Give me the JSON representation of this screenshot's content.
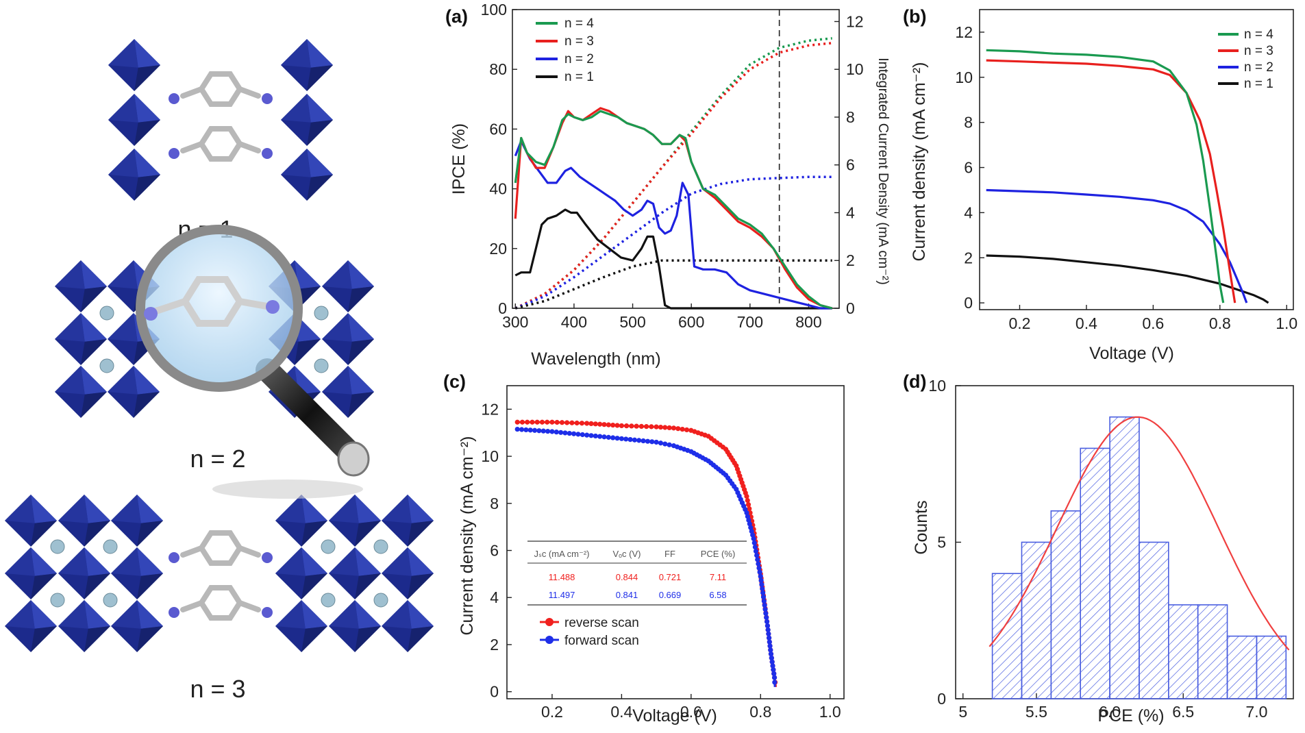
{
  "colors": {
    "n4": "#1a9a50",
    "n3": "#e8201e",
    "n2": "#1e22e0",
    "n1": "#111111",
    "octahedron": "#1c2a8c",
    "reverse": "#f0201e",
    "forward": "#1e2ee8",
    "hist": "#4a5ee0",
    "fit": "#f04040"
  },
  "structure": {
    "labels": [
      "n = 1",
      "n = 2",
      "n = 3"
    ]
  },
  "chart_data": [
    {
      "panel": "(a)",
      "type": "line",
      "xlabel": "Wavelength (nm)",
      "ylabel": "IPCE (%)",
      "y2label": "Integrated Current Density (mA cm⁻²)",
      "xlim": [
        295,
        852
      ],
      "ylim": [
        0,
        100
      ],
      "y2lim": [
        0,
        12.5
      ],
      "xticks": [
        "300",
        "400",
        "500",
        "600",
        "700",
        "800"
      ],
      "yticks": [
        "0",
        "20",
        "40",
        "60",
        "80",
        "100"
      ],
      "y2ticks": [
        "0",
        "2",
        "4",
        "6",
        "8",
        "10",
        "12"
      ],
      "vline": 750,
      "legend": [
        "n = 4",
        "n = 3",
        "n = 2",
        "n = 1"
      ],
      "legend_position": "top-left",
      "series": [
        {
          "name": "n = 4",
          "color_key": "n4",
          "x": [
            300,
            310,
            320,
            335,
            350,
            365,
            380,
            390,
            400,
            415,
            430,
            445,
            460,
            475,
            490,
            505,
            520,
            535,
            550,
            565,
            580,
            590,
            600,
            620,
            640,
            660,
            680,
            700,
            720,
            740,
            760,
            780,
            800,
            820,
            840
          ],
          "values": [
            42,
            57,
            52,
            49,
            48,
            54,
            63,
            65,
            64,
            63,
            64,
            66,
            65,
            64,
            62,
            61,
            60,
            58,
            55,
            55,
            58,
            57,
            49,
            40,
            38,
            34,
            30,
            28,
            25,
            20,
            14,
            8,
            4,
            1,
            0
          ]
        },
        {
          "name": "n = 3",
          "color_key": "n3",
          "x": [
            300,
            310,
            320,
            335,
            350,
            365,
            380,
            390,
            400,
            415,
            430,
            445,
            460,
            475,
            490,
            505,
            520,
            535,
            550,
            565,
            580,
            590,
            600,
            620,
            640,
            660,
            680,
            700,
            720,
            740,
            760,
            780,
            800,
            820,
            840
          ],
          "values": [
            30,
            57,
            52,
            47,
            47,
            54,
            62,
            66,
            64,
            63,
            65,
            67,
            66,
            64,
            62,
            61,
            60,
            58,
            55,
            55,
            58,
            56,
            49,
            40,
            37,
            33,
            29,
            27,
            24,
            20,
            13,
            7,
            3,
            1,
            0
          ]
        },
        {
          "name": "n = 2",
          "color_key": "n2",
          "x": [
            300,
            310,
            325,
            340,
            355,
            370,
            385,
            395,
            410,
            425,
            440,
            455,
            470,
            485,
            500,
            515,
            525,
            535,
            545,
            555,
            565,
            575,
            585,
            595,
            605,
            620,
            640,
            660,
            680,
            700,
            720,
            740,
            760,
            780,
            800,
            820,
            840
          ],
          "values": [
            51,
            56,
            50,
            46,
            42,
            42,
            46,
            47,
            44,
            42,
            40,
            38,
            36,
            33,
            31,
            33,
            36,
            35,
            27,
            25,
            26,
            31,
            42,
            38,
            14,
            13,
            13,
            12,
            8,
            6,
            5,
            4,
            3,
            2,
            1,
            0,
            0
          ]
        },
        {
          "name": "n = 1",
          "color_key": "n1",
          "x": [
            300,
            310,
            325,
            335,
            345,
            355,
            370,
            385,
            395,
            405,
            420,
            440,
            460,
            480,
            500,
            515,
            525,
            535,
            545,
            555,
            565,
            600,
            700,
            800,
            840
          ],
          "values": [
            11,
            12,
            12,
            20,
            28,
            30,
            31,
            33,
            32,
            32,
            28,
            23,
            20,
            17,
            16,
            20,
            24,
            24,
            14,
            1,
            0,
            0,
            0,
            0,
            0
          ]
        }
      ],
      "integrated": [
        {
          "name": "n = 4",
          "color_key": "n4",
          "x": [
            300,
            350,
            400,
            450,
            500,
            550,
            600,
            650,
            700,
            750,
            800,
            840
          ],
          "values": [
            0,
            0.6,
            1.6,
            2.9,
            4.4,
            5.9,
            7.4,
            8.9,
            10.2,
            10.9,
            11.2,
            11.3
          ]
        },
        {
          "name": "n = 3",
          "color_key": "n3",
          "x": [
            300,
            350,
            400,
            450,
            500,
            550,
            600,
            650,
            700,
            750,
            800,
            840
          ],
          "values": [
            0,
            0.6,
            1.6,
            2.9,
            4.4,
            5.9,
            7.3,
            8.8,
            10.0,
            10.7,
            11.0,
            11.1
          ]
        },
        {
          "name": "n = 2",
          "color_key": "n2",
          "x": [
            300,
            350,
            400,
            450,
            500,
            550,
            600,
            650,
            700,
            750,
            800,
            840
          ],
          "values": [
            0,
            0.5,
            1.3,
            2.2,
            3.1,
            4.0,
            4.8,
            5.2,
            5.4,
            5.45,
            5.5,
            5.5
          ]
        },
        {
          "name": "n = 1",
          "color_key": "n1",
          "x": [
            300,
            350,
            400,
            450,
            500,
            550,
            600,
            700,
            800,
            840
          ],
          "values": [
            0,
            0.3,
            0.8,
            1.3,
            1.75,
            2.0,
            2.0,
            2.0,
            2.0,
            2.0
          ]
        }
      ]
    },
    {
      "panel": "(b)",
      "type": "line",
      "xlabel": "Voltage (V)",
      "ylabel": "Current density (mA cm⁻²)",
      "xlim": [
        0.08,
        1.02
      ],
      "ylim": [
        -0.3,
        13
      ],
      "xticks": [
        "0.2",
        "0.4",
        "0.6",
        "0.8",
        "1.0"
      ],
      "yticks": [
        "0",
        "2",
        "4",
        "6",
        "8",
        "10",
        "12"
      ],
      "legend": [
        "n = 4",
        "n = 3",
        "n = 2",
        "n = 1"
      ],
      "legend_position": "top-right",
      "series": [
        {
          "name": "n = 4",
          "color_key": "n4",
          "x": [
            0.1,
            0.2,
            0.3,
            0.4,
            0.5,
            0.6,
            0.65,
            0.7,
            0.73,
            0.75,
            0.77,
            0.79,
            0.8,
            0.81
          ],
          "values": [
            11.2,
            11.15,
            11.05,
            11.0,
            10.9,
            10.7,
            10.3,
            9.3,
            7.9,
            6.3,
            4.2,
            2.0,
            0.8,
            0
          ]
        },
        {
          "name": "n = 3",
          "color_key": "n3",
          "x": [
            0.1,
            0.2,
            0.3,
            0.4,
            0.5,
            0.6,
            0.65,
            0.7,
            0.74,
            0.77,
            0.79,
            0.81,
            0.83,
            0.845
          ],
          "values": [
            10.75,
            10.7,
            10.65,
            10.6,
            10.5,
            10.35,
            10.1,
            9.3,
            8.1,
            6.6,
            5.0,
            3.3,
            1.4,
            0
          ]
        },
        {
          "name": "n = 2",
          "color_key": "n2",
          "x": [
            0.1,
            0.2,
            0.3,
            0.4,
            0.5,
            0.6,
            0.65,
            0.7,
            0.75,
            0.8,
            0.83,
            0.85,
            0.87,
            0.88
          ],
          "values": [
            5.0,
            4.95,
            4.9,
            4.8,
            4.7,
            4.55,
            4.4,
            4.1,
            3.6,
            2.6,
            1.8,
            1.1,
            0.4,
            0
          ]
        },
        {
          "name": "n = 1",
          "color_key": "n1",
          "x": [
            0.1,
            0.2,
            0.3,
            0.4,
            0.5,
            0.6,
            0.7,
            0.8,
            0.85,
            0.9,
            0.93,
            0.945
          ],
          "values": [
            2.1,
            2.05,
            1.95,
            1.8,
            1.65,
            1.45,
            1.2,
            0.85,
            0.6,
            0.35,
            0.15,
            0
          ]
        }
      ]
    },
    {
      "panel": "(c)",
      "type": "line",
      "xlabel": "Voltage (V)",
      "ylabel": "Current density (mA cm⁻²)",
      "xlim": [
        0.07,
        1.04
      ],
      "ylim": [
        -0.3,
        13
      ],
      "xticks": [
        "0.2",
        "0.4",
        "0.6",
        "0.8",
        "1.0"
      ],
      "yticks": [
        "0",
        "2",
        "4",
        "6",
        "8",
        "10",
        "12"
      ],
      "legend": [
        "reverse scan",
        "forward scan"
      ],
      "legend_position": "bottom-left",
      "series": [
        {
          "name": "reverse scan",
          "color_key": "reverse",
          "x": [
            0.1,
            0.2,
            0.3,
            0.4,
            0.5,
            0.55,
            0.6,
            0.65,
            0.7,
            0.73,
            0.76,
            0.78,
            0.8,
            0.82,
            0.83,
            0.84,
            0.844
          ],
          "values": [
            11.45,
            11.45,
            11.4,
            11.3,
            11.25,
            11.2,
            11.1,
            10.85,
            10.3,
            9.6,
            8.3,
            6.9,
            5.0,
            2.8,
            1.6,
            0.6,
            0.2
          ]
        },
        {
          "name": "forward scan",
          "color_key": "forward",
          "x": [
            0.1,
            0.2,
            0.3,
            0.4,
            0.5,
            0.55,
            0.6,
            0.65,
            0.7,
            0.73,
            0.76,
            0.78,
            0.8,
            0.82,
            0.83,
            0.84,
            0.841
          ],
          "values": [
            11.15,
            11.05,
            10.9,
            10.75,
            10.6,
            10.45,
            10.2,
            9.8,
            9.2,
            8.6,
            7.6,
            6.5,
            4.9,
            2.8,
            1.6,
            0.6,
            0.2
          ]
        }
      ],
      "table": {
        "headers": [
          "Jₛᴄ (mA cm⁻²)",
          "Vₒᴄ (V)",
          "FF",
          "PCE (%)"
        ],
        "rows": [
          {
            "color_key": "reverse",
            "cells": [
              "11.488",
              "0.844",
              "0.721",
              "7.11"
            ]
          },
          {
            "color_key": "forward",
            "cells": [
              "11.497",
              "0.841",
              "0.669",
              "6.58"
            ]
          }
        ]
      }
    },
    {
      "panel": "(d)",
      "type": "bar",
      "xlabel": "PCE (%)",
      "ylabel": "Counts",
      "xlim": [
        4.95,
        7.25
      ],
      "ylim": [
        0,
        10
      ],
      "xticks": [
        "5",
        "5.5",
        "6.0",
        "6.5",
        "7.0"
      ],
      "yticks": [
        "0",
        "5",
        "10"
      ],
      "bins": [
        [
          5.2,
          5.4
        ],
        [
          5.4,
          5.6
        ],
        [
          5.6,
          5.8
        ],
        [
          5.8,
          6.0
        ],
        [
          6.0,
          6.2
        ],
        [
          6.2,
          6.4
        ],
        [
          6.4,
          6.6
        ],
        [
          6.6,
          6.8
        ],
        [
          6.8,
          7.0
        ],
        [
          7.0,
          7.2
        ]
      ],
      "values": [
        4,
        5,
        6,
        8,
        9,
        5,
        3,
        3,
        2,
        2
      ],
      "fit": {
        "type": "gaussian",
        "mean": 6.19,
        "peak": 9.0,
        "sigma": 0.55,
        "offset": 0.0,
        "x_range": [
          5.18,
          7.22
        ]
      }
    }
  ]
}
